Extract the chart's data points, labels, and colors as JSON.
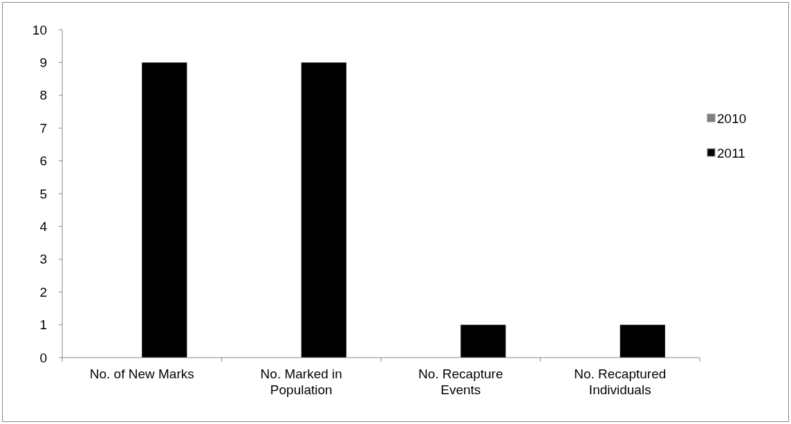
{
  "chart_data": {
    "type": "bar",
    "categories": [
      "No. of New Marks",
      "No. Marked in Population",
      "No. Recapture Events",
      "No. Recaptured Individuals"
    ],
    "series": [
      {
        "name": "2010",
        "color": "#808080",
        "values": [
          0,
          0,
          0,
          0
        ]
      },
      {
        "name": "2011",
        "color": "#000000",
        "values": [
          9,
          9,
          1,
          1
        ]
      }
    ],
    "ylim": [
      0,
      10
    ],
    "yticks": [
      0,
      1,
      2,
      3,
      4,
      5,
      6,
      7,
      8,
      9,
      10
    ],
    "grid": false,
    "legend": "right"
  }
}
